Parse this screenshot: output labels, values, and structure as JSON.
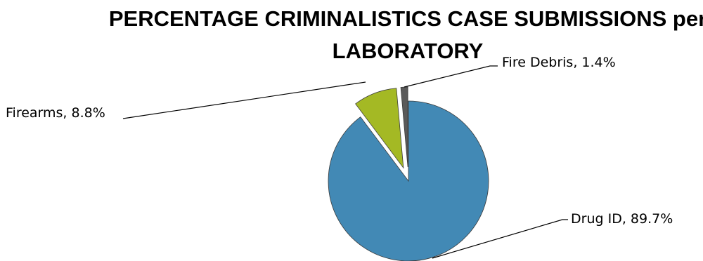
{
  "chart_data": {
    "type": "pie",
    "title": "PERCENTAGE CRIMINALISTICS CASE SUBMISSIONS per LABORATORY",
    "slices": [
      {
        "name": "Drug ID",
        "value": 89.7,
        "label": "Drug ID, 89.7%",
        "color": "#4289b5",
        "exploded": false
      },
      {
        "name": "Firearms",
        "value": 8.8,
        "label": "Firearms, 8.8%",
        "color": "#a4b924",
        "exploded": true
      },
      {
        "name": "Fire Debris",
        "value": 1.4,
        "label": "Fire Debris, 1.4%",
        "color": "#5a5a5a",
        "exploded": true
      }
    ],
    "legend": "none"
  }
}
